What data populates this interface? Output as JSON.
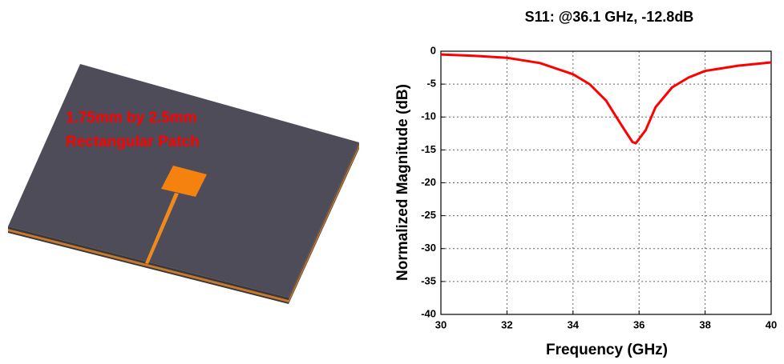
{
  "figure": {
    "labels": [
      "1.75mm by 2.5mm",
      "Rectangular Patch"
    ]
  },
  "chart_data": {
    "type": "line",
    "title": "S11: @36.1 GHz, -12.8dB",
    "x_label": "Frequency (GHz)",
    "y_label": "Normalized Magnitude (dB)",
    "x": [
      30,
      31,
      32,
      33,
      34,
      34.5,
      35,
      35.5,
      35.8,
      35.9,
      36.2,
      36.5,
      37,
      37.5,
      38,
      39,
      40
    ],
    "series": [
      {
        "color": "#ff0000",
        "values": [
          -0.5,
          -0.7,
          -1.0,
          -1.8,
          -3.5,
          -5.0,
          -7.5,
          -11.5,
          -13.8,
          -14.0,
          -12.0,
          -8.5,
          -5.5,
          -4.0,
          -3.0,
          -2.2,
          -1.7
        ]
      }
    ],
    "xlim": [
      30,
      40
    ],
    "xticks": [
      30,
      32,
      34,
      36,
      38,
      40
    ],
    "ylim": [
      -40,
      0
    ],
    "yticks": [
      0,
      -5,
      -10,
      -15,
      -20,
      -25,
      -30,
      -35,
      -40
    ],
    "grid": true
  }
}
